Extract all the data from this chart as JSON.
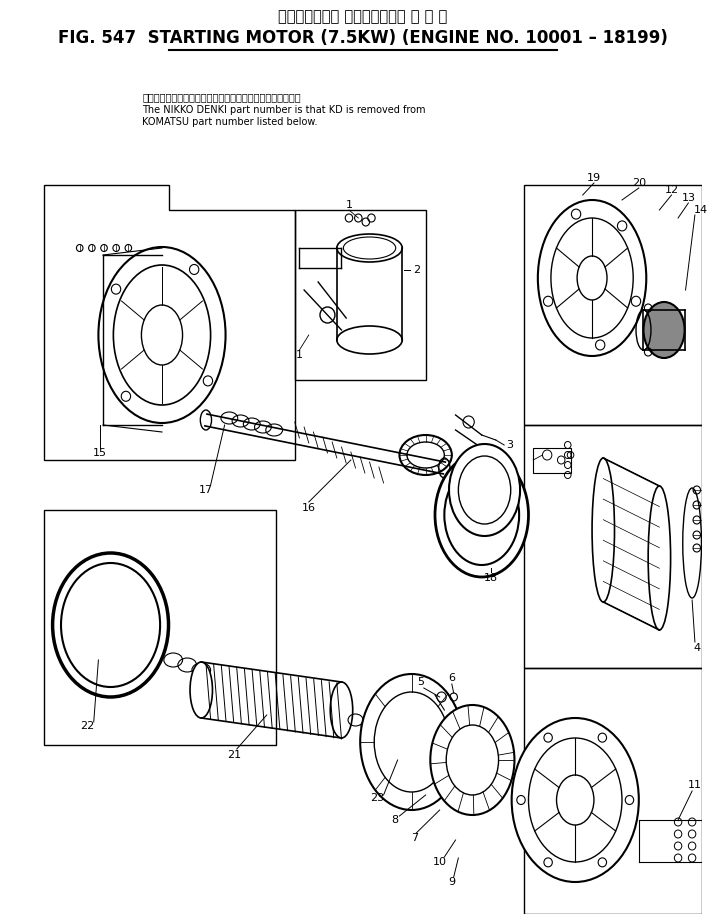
{
  "title_japanese": "スターティング モータ　　　適 用 号 機",
  "title_english": "FIG. 547  STARTING MOTOR (7.5KW) (ENGINE NO. 10001 – 18199)",
  "note_jp": "品番のメーカ記号ＫＤを除いたものが日興電機の品番です。",
  "note_en1": "The NIKKO DENKI part number is that KD is removed from",
  "note_en2": "KOMATSU part number listed below.",
  "bg": "#ffffff",
  "lc": "#000000",
  "fig_width": 7.26,
  "fig_height": 9.14,
  "dpi": 100
}
